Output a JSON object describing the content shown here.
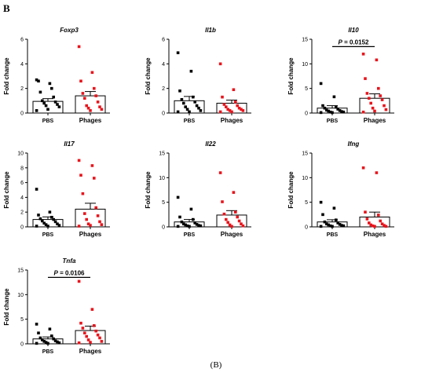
{
  "panel_letter": "B",
  "caption": "(B)",
  "chart_data": [
    {
      "type": "scatter",
      "title": "Foxp3",
      "ylabel": "Fold change",
      "ylim": [
        0,
        6
      ],
      "yticks": [
        0,
        2,
        4,
        6
      ],
      "categories": [
        "PBS",
        "Phages"
      ],
      "colors": [
        "#000000",
        "#e8141c"
      ],
      "means": [
        0.95,
        1.4
      ],
      "errors": [
        0.22,
        0.35
      ],
      "points": [
        [
          2.7,
          2.4,
          2.6,
          2.0,
          1.7,
          1.3,
          1.0,
          0.9,
          0.8,
          0.7,
          0.6,
          0.5,
          0.3,
          0.2
        ],
        [
          5.4,
          3.3,
          2.6,
          2.0,
          1.6,
          1.4,
          1.2,
          0.9,
          0.6,
          0.5,
          0.4,
          0.3,
          0.2
        ]
      ],
      "pvalue": null
    },
    {
      "type": "scatter",
      "title": "Il1b",
      "ylabel": "Fold change",
      "ylim": [
        0,
        6
      ],
      "yticks": [
        0,
        2,
        4,
        6
      ],
      "categories": [
        "PBS",
        "Phages"
      ],
      "colors": [
        "#000000",
        "#e8141c"
      ],
      "means": [
        1.0,
        0.8
      ],
      "errors": [
        0.35,
        0.25
      ],
      "points": [
        [
          4.9,
          3.4,
          1.8,
          1.3,
          1.1,
          0.9,
          0.8,
          0.6,
          0.5,
          0.4,
          0.3,
          0.2,
          0.1,
          0.1
        ],
        [
          4.0,
          1.9,
          1.3,
          0.9,
          0.7,
          0.6,
          0.5,
          0.4,
          0.3,
          0.3,
          0.2,
          0.2,
          0.1,
          0.1
        ]
      ],
      "pvalue": null
    },
    {
      "type": "scatter",
      "title": "Il10",
      "ylabel": "Fold change",
      "ylim": [
        0,
        15
      ],
      "yticks": [
        0,
        5,
        10,
        15
      ],
      "categories": [
        "PBS",
        "Phages"
      ],
      "colors": [
        "#000000",
        "#e8141c"
      ],
      "means": [
        1.0,
        3.0
      ],
      "errors": [
        0.5,
        0.9
      ],
      "points": [
        [
          6.0,
          3.3,
          1.5,
          1.2,
          1.0,
          0.8,
          0.6,
          0.5,
          0.4,
          0.3,
          0.2,
          0.2,
          0.1,
          0.1
        ],
        [
          12.0,
          10.8,
          7.0,
          5.0,
          4.0,
          3.5,
          3.0,
          2.7,
          2.0,
          1.5,
          1.0,
          0.7,
          0.4,
          0.2
        ]
      ],
      "pvalue": "0.0152"
    },
    {
      "type": "scatter",
      "title": "Il17",
      "ylabel": "Fold change",
      "ylim": [
        0,
        10
      ],
      "yticks": [
        0,
        2,
        4,
        6,
        8,
        10
      ],
      "categories": [
        "PBS",
        "Phages"
      ],
      "colors": [
        "#000000",
        "#e8141c"
      ],
      "means": [
        1.0,
        2.4
      ],
      "errors": [
        0.35,
        0.8
      ],
      "points": [
        [
          5.1,
          2.0,
          1.6,
          1.3,
          1.1,
          1.0,
          0.8,
          0.7,
          0.5,
          0.4,
          0.3,
          0.2,
          0.1,
          0.1
        ],
        [
          9.0,
          8.3,
          7.0,
          6.6,
          4.5,
          2.6,
          1.8,
          1.5,
          1.0,
          0.7,
          0.4,
          0.3,
          0.2,
          0.1
        ]
      ],
      "pvalue": null
    },
    {
      "type": "scatter",
      "title": "Il22",
      "ylabel": "Fold change",
      "ylim": [
        0,
        15
      ],
      "yticks": [
        0,
        5,
        10,
        15
      ],
      "categories": [
        "PBS",
        "Phages"
      ],
      "colors": [
        "#000000",
        "#e8141c"
      ],
      "means": [
        1.0,
        2.4
      ],
      "errors": [
        0.5,
        0.9
      ],
      "points": [
        [
          6.0,
          3.6,
          2.0,
          1.5,
          1.0,
          0.8,
          0.6,
          0.5,
          0.4,
          0.3,
          0.2,
          0.2,
          0.1,
          0.1
        ],
        [
          11.0,
          7.0,
          5.1,
          3.0,
          2.6,
          2.0,
          1.5,
          1.2,
          0.9,
          0.6,
          0.4,
          0.2,
          0.1
        ]
      ],
      "pvalue": null
    },
    {
      "type": "scatter",
      "title": "Ifng",
      "ylabel": "Fold change",
      "ylim": [
        0,
        15
      ],
      "yticks": [
        0,
        5,
        10,
        15
      ],
      "categories": [
        "PBS",
        "Phages"
      ],
      "colors": [
        "#000000",
        "#e8141c"
      ],
      "means": [
        1.0,
        2.0
      ],
      "errors": [
        0.45,
        1.0
      ],
      "points": [
        [
          5.0,
          3.8,
          2.5,
          1.4,
          1.0,
          0.8,
          0.6,
          0.5,
          0.4,
          0.3,
          0.2,
          0.2,
          0.1,
          0.1
        ],
        [
          12.0,
          11.0,
          3.0,
          2.4,
          1.6,
          1.2,
          0.8,
          0.6,
          0.4,
          0.3,
          0.2,
          0.1,
          0.1
        ]
      ],
      "pvalue": null
    },
    {
      "type": "scatter",
      "title": "Tnfa",
      "ylabel": "Fold change",
      "ylim": [
        0,
        15
      ],
      "yticks": [
        0,
        5,
        10,
        15
      ],
      "categories": [
        "PBS",
        "Phages"
      ],
      "colors": [
        "#000000",
        "#e8141c"
      ],
      "means": [
        1.0,
        2.7
      ],
      "errors": [
        0.4,
        0.9
      ],
      "points": [
        [
          4.0,
          3.0,
          2.2,
          1.6,
          1.2,
          1.0,
          0.8,
          0.6,
          0.5,
          0.4,
          0.3,
          0.2,
          0.1,
          0.1
        ],
        [
          12.7,
          7.0,
          4.2,
          3.7,
          3.2,
          2.6,
          2.2,
          1.8,
          1.5,
          1.2,
          0.8,
          0.5,
          0.3,
          0.2
        ]
      ],
      "pvalue": "0.0106"
    }
  ]
}
